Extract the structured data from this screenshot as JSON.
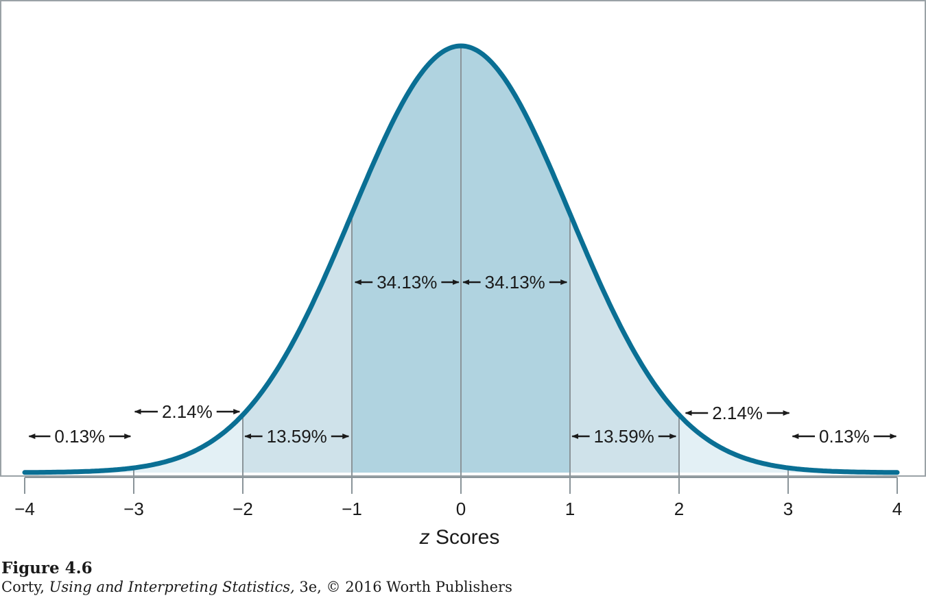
{
  "chart_data": {
    "type": "area",
    "distribution": "standard normal",
    "xlabel_prefix": "z",
    "xlabel_suffix": "Scores",
    "xlim": [
      -4,
      4
    ],
    "x_ticks": [
      -4,
      -3,
      -2,
      -1,
      0,
      1,
      2,
      3,
      4
    ],
    "x_tick_labels": [
      "−4",
      "−3",
      "−2",
      "−1",
      "0",
      "1",
      "2",
      "3",
      "4"
    ],
    "grid": false,
    "bands": [
      {
        "from": -4,
        "to": -3,
        "label": "0.13%"
      },
      {
        "from": -3,
        "to": -2,
        "label": "2.14%"
      },
      {
        "from": -2,
        "to": -1,
        "label": "13.59%"
      },
      {
        "from": -1,
        "to": 0,
        "label": "34.13%"
      },
      {
        "from": 0,
        "to": 1,
        "label": "34.13%"
      },
      {
        "from": 1,
        "to": 2,
        "label": "13.59%"
      },
      {
        "from": 2,
        "to": 3,
        "label": "2.14%"
      },
      {
        "from": 3,
        "to": 4,
        "label": "0.13%"
      }
    ],
    "colors": {
      "curve": "#0a6f94",
      "band_inner": "#b0d3e0",
      "band_middle": "#cfe2ea",
      "band_outer": "#e3f0f5",
      "divider": "#8a9499",
      "frame": "#9aa2a6",
      "text": "#1a1a1a"
    }
  },
  "caption": {
    "figure": "Figure 4.6",
    "credit_author": "Corty, ",
    "credit_title": "Using and Interpreting Statistics,",
    "credit_rest": " 3e, © 2016 Worth Publishers"
  }
}
